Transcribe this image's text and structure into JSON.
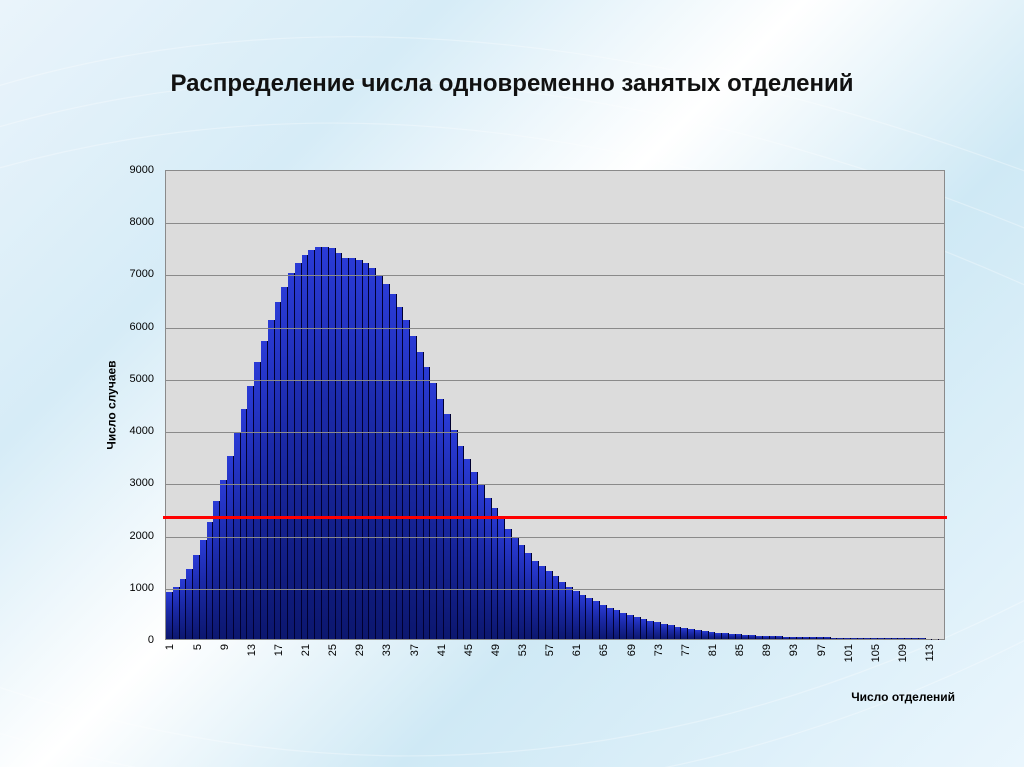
{
  "page": {
    "title": "Распределение числа одновременно занятых отделений",
    "title_fontsize": 24,
    "title_color": "#111111"
  },
  "chart": {
    "type": "histogram",
    "plot_background": "#dcdcdc",
    "plot_border_color": "#8a8a8a",
    "grid_color": "#8a8a8a",
    "bar_gradient_top": "#2a3bd6",
    "bar_gradient_mid": "#1b2aa9",
    "bar_gradient_bottom": "#0c176f",
    "bar_border_color": "#000030",
    "y_axis": {
      "label": "Число случаев",
      "label_fontsize": 12,
      "label_fontweight": "bold",
      "min": 0,
      "max": 9000,
      "tick_step": 1000,
      "ticks": [
        0,
        1000,
        2000,
        3000,
        4000,
        5000,
        6000,
        7000,
        8000,
        9000
      ],
      "tick_fontsize": 11
    },
    "x_axis": {
      "label": "Число отделений",
      "label_fontsize": 12,
      "label_fontweight": "bold",
      "min": 1,
      "max": 115,
      "tick_step": 4,
      "ticks": [
        1,
        5,
        9,
        13,
        17,
        21,
        25,
        29,
        33,
        37,
        41,
        45,
        49,
        53,
        57,
        61,
        65,
        69,
        73,
        77,
        81,
        85,
        89,
        93,
        97,
        101,
        105,
        109,
        113
      ],
      "tick_fontsize": 11,
      "tick_rotation_deg": -90
    },
    "reference_line": {
      "value": 2400,
      "color": "#ff0000",
      "width": 3
    },
    "values": [
      900,
      1000,
      1150,
      1350,
      1600,
      1900,
      2250,
      2650,
      3050,
      3500,
      3950,
      4400,
      4850,
      5300,
      5700,
      6100,
      6450,
      6750,
      7000,
      7200,
      7350,
      7450,
      7500,
      7500,
      7480,
      7400,
      7300,
      7300,
      7250,
      7200,
      7100,
      6950,
      6800,
      6600,
      6350,
      6100,
      5800,
      5500,
      5200,
      4900,
      4600,
      4300,
      4000,
      3700,
      3450,
      3200,
      2950,
      2700,
      2500,
      2300,
      2100,
      1950,
      1800,
      1650,
      1500,
      1400,
      1300,
      1200,
      1100,
      1000,
      920,
      850,
      780,
      720,
      660,
      600,
      550,
      500,
      460,
      420,
      380,
      350,
      320,
      290,
      260,
      230,
      210,
      190,
      170,
      150,
      135,
      120,
      110,
      100,
      90,
      80,
      72,
      65,
      60,
      55,
      50,
      45,
      42,
      40,
      38,
      35,
      32,
      30,
      28,
      26,
      24,
      22,
      20,
      18,
      17,
      16,
      15,
      14,
      13,
      12,
      11,
      10,
      9,
      8,
      7
    ],
    "n_bars": 115
  }
}
